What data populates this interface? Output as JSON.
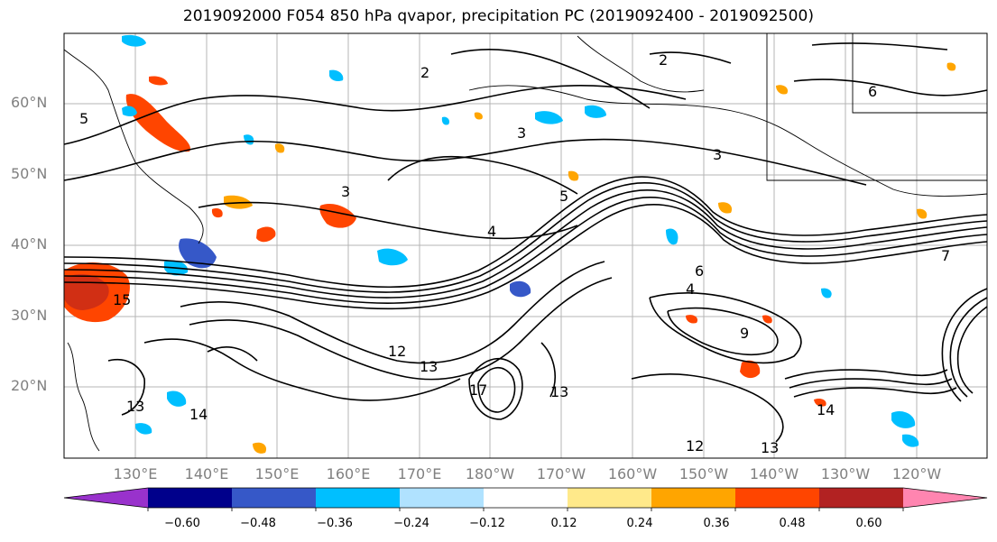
{
  "title": "2019092000 F054 850 hPa qvapor, precipitation PC (2019092400 - 2019092500)",
  "map": {
    "lat_labels": [
      "60°N",
      "50°N",
      "40°N",
      "30°N",
      "20°N"
    ],
    "lon_labels": [
      "130°E",
      "140°E",
      "150°E",
      "160°E",
      "170°E",
      "180°W",
      "170°W",
      "160°W",
      "150°W",
      "140°W",
      "130°W",
      "120°W"
    ],
    "extent": {
      "lon_min": 120,
      "lon_max": 250,
      "lat_min": 10,
      "lat_max": 70
    },
    "contour_labels": [
      "2",
      "2",
      "3",
      "3",
      "3",
      "4",
      "4",
      "5",
      "5",
      "6",
      "6",
      "7",
      "9",
      "12",
      "12",
      "13",
      "13",
      "13",
      "13",
      "14",
      "14",
      "15",
      "17"
    ]
  },
  "colorbar": {
    "ticks": [
      "−0.60",
      "−0.48",
      "−0.36",
      "−0.24",
      "−0.12",
      "0.12",
      "0.24",
      "0.36",
      "0.48",
      "0.60"
    ],
    "colors": [
      "#9932cc",
      "#00008b",
      "#3658c8",
      "#00bfff",
      "#b0e2ff",
      "#ffffff",
      "#ffe98a",
      "#ffa500",
      "#ff4500",
      "#b22222",
      "#ff85b0"
    ]
  }
}
